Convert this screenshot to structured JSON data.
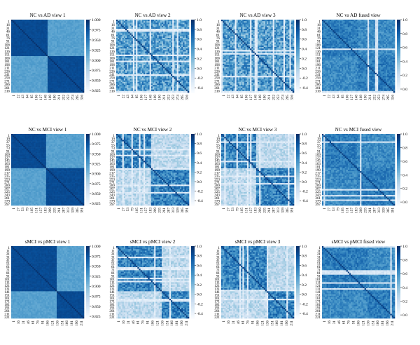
{
  "figure": {
    "rows": [
      {
        "ylabels": [
          "1",
          "16",
          "31",
          "46",
          "61",
          "76",
          "91",
          "106",
          "121",
          "136",
          "151",
          "166",
          "181",
          "196",
          "211",
          "226",
          "241",
          "256",
          "271",
          "286",
          "301",
          "316"
        ],
        "xlabels": [
          "1",
          "22",
          "43",
          "64",
          "85",
          "106",
          "127",
          "148",
          "169",
          "190",
          "211",
          "232",
          "253",
          "274",
          "295",
          "316"
        ],
        "xlabels_alt": [
          "1",
          "22",
          "43",
          "64",
          "85",
          "106",
          "127",
          "148",
          "169",
          "190",
          "211",
          "232",
          "253",
          "274",
          "295",
          "316"
        ],
        "blocks": [
          0.5
        ]
      },
      {
        "ylabels": [
          "1",
          "19",
          "37",
          "55",
          "73",
          "91",
          "109",
          "127",
          "145",
          "163",
          "181",
          "199",
          "217",
          "235",
          "253",
          "271",
          "289",
          "307",
          "325",
          "343",
          "361",
          "379",
          "397"
        ],
        "xlabels": [
          "1",
          "27",
          "53",
          "79",
          "105",
          "131",
          "157",
          "183",
          "209",
          "235",
          "261",
          "287",
          "313",
          "339",
          "365",
          "391"
        ],
        "xlabels_alt": [
          "1",
          "27",
          "53",
          "79",
          "105",
          "131",
          "157",
          "183",
          "209",
          "235",
          "261",
          "287",
          "313",
          "339",
          "365",
          "391"
        ],
        "blocks": [
          0.48
        ]
      },
      {
        "ylabels": [
          "1",
          "11",
          "21",
          "31",
          "41",
          "51",
          "61",
          "71",
          "81",
          "91",
          "101",
          "111",
          "121",
          "131",
          "141",
          "151",
          "161",
          "171",
          "181",
          "191",
          "201",
          "211",
          "221"
        ],
        "xlabels": [
          "1",
          "16",
          "31",
          "46",
          "61",
          "76",
          "91",
          "106",
          "121",
          "136",
          "151",
          "166",
          "181",
          "196",
          "211"
        ],
        "xlabels_alt": [
          "1",
          "16",
          "31",
          "46",
          "61",
          "76",
          "91",
          "106",
          "121",
          "136",
          "151",
          "166",
          "181",
          "196",
          "211"
        ],
        "blocks": [
          0.62
        ]
      }
    ],
    "scales": {
      "view1": {
        "ticks": [
          "1.000",
          "0.975",
          "0.950",
          "0.925",
          "0.900",
          "0.875",
          "0.850",
          "0.825"
        ]
      },
      "view23": {
        "ticks": [
          "1.0",
          "0.8",
          "0.6",
          "0.4",
          "0.2",
          "0.0",
          "-0.2",
          "-0.4"
        ]
      },
      "fused": {
        "ticks": [
          "1.0",
          "0.8",
          "0.6",
          "0.4",
          "0.2",
          "0.0"
        ]
      }
    }
  },
  "chart_data": [
    {
      "type": "heatmap",
      "title": "NC vs AD view 1",
      "matrix_size": 316,
      "colorbar_range": [
        0.82,
        1.0
      ],
      "blocks": [
        "1-158",
        "159-316"
      ],
      "colormap": "Blues"
    },
    {
      "type": "heatmap",
      "title": "NC vs AD view 2",
      "matrix_size": 316,
      "colorbar_range": [
        -0.5,
        1.0
      ],
      "colormap": "Blues"
    },
    {
      "type": "heatmap",
      "title": "NC vs AD view 3",
      "matrix_size": 316,
      "colorbar_range": [
        -0.5,
        1.0
      ],
      "colormap": "Blues"
    },
    {
      "type": "heatmap",
      "title": "NC vs AD fused view",
      "matrix_size": 316,
      "colorbar_range": [
        -0.05,
        1.0
      ],
      "colormap": "Blues"
    },
    {
      "type": "heatmap",
      "title": "NC vs MCI view 1",
      "matrix_size": 397,
      "colorbar_range": [
        0.82,
        1.0
      ],
      "colormap": "Blues"
    },
    {
      "type": "heatmap",
      "title": "NC vs MCI view 2",
      "matrix_size": 397,
      "colorbar_range": [
        -0.5,
        1.0
      ],
      "colormap": "Blues"
    },
    {
      "type": "heatmap",
      "title": "NC vs MCI view 3",
      "matrix_size": 397,
      "colorbar_range": [
        -0.5,
        1.0
      ],
      "colormap": "Blues"
    },
    {
      "type": "heatmap",
      "title": "NC vs MCI fused view",
      "matrix_size": 397,
      "colorbar_range": [
        -0.05,
        1.0
      ],
      "colormap": "Blues"
    },
    {
      "type": "heatmap",
      "title": "sMCI vs pMCI view 1",
      "matrix_size": 221,
      "colorbar_range": [
        0.82,
        1.0
      ],
      "colormap": "Blues"
    },
    {
      "type": "heatmap",
      "title": "sMCI vs pMCI view 2",
      "matrix_size": 221,
      "colorbar_range": [
        -0.5,
        1.0
      ],
      "colormap": "Blues"
    },
    {
      "type": "heatmap",
      "title": "sMCI vs pMCI view 3",
      "matrix_size": 221,
      "colorbar_range": [
        -0.5,
        1.0
      ],
      "colormap": "Blues"
    },
    {
      "type": "heatmap",
      "title": "sMCI vs pMCI fused view",
      "matrix_size": 221,
      "colorbar_range": [
        -0.05,
        1.0
      ],
      "colormap": "Blues"
    }
  ]
}
